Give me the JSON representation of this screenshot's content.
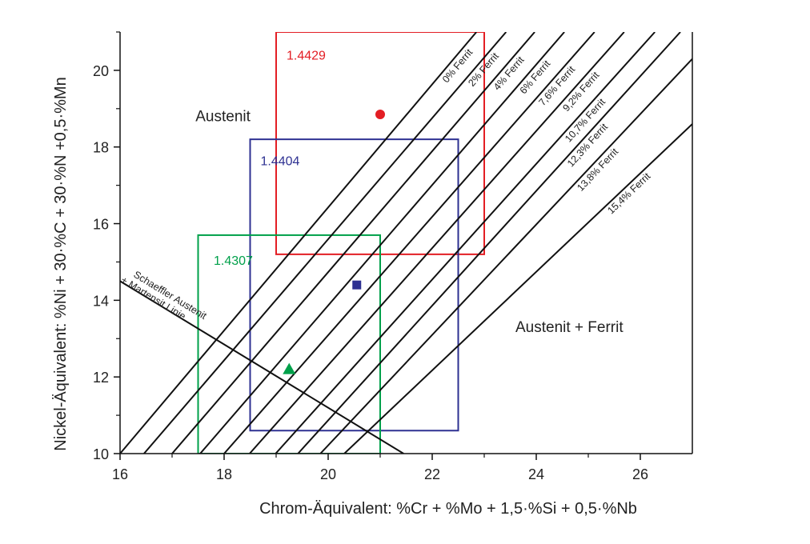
{
  "chart_data": {
    "type": "line",
    "xlabel": "Chrom-Äquivalent: %Cr + %Mo + 1,5·%Si + 0,5·%Nb",
    "ylabel": "Nickel-Äquivalent: %Ni + 30·%C + 30·%N +0,5·%Mn",
    "xlim": [
      16,
      27
    ],
    "ylim": [
      10,
      21
    ],
    "xticks": [
      16,
      18,
      20,
      22,
      24,
      26
    ],
    "yticks": [
      10,
      12,
      14,
      16,
      18,
      20
    ],
    "xticks_minor": [
      17,
      19,
      21,
      23,
      25
    ],
    "yticks_minor": [
      11,
      13,
      15,
      17,
      19,
      21
    ],
    "series": [
      {
        "name": "0% Ferrit",
        "color": "#111111",
        "x": [
          16.0,
          22.85
        ],
        "values": [
          10,
          21
        ]
      },
      {
        "name": "2% Ferrit",
        "color": "#111111",
        "x": [
          16.46,
          23.42
        ],
        "values": [
          10,
          21
        ]
      },
      {
        "name": "4% Ferrit",
        "color": "#111111",
        "x": [
          17.0,
          23.97
        ],
        "values": [
          10,
          21
        ]
      },
      {
        "name": "6% Ferrit",
        "color": "#111111",
        "x": [
          17.54,
          24.54
        ],
        "values": [
          10,
          21
        ]
      },
      {
        "name": "7,6% Ferrit",
        "color": "#111111",
        "x": [
          18.0,
          25.12
        ],
        "values": [
          10,
          21
        ]
      },
      {
        "name": "9,2% Ferrit",
        "color": "#111111",
        "x": [
          18.49,
          25.69
        ],
        "values": [
          10,
          21
        ]
      },
      {
        "name": "10,7% Ferrit",
        "color": "#111111",
        "x": [
          18.99,
          26.28
        ],
        "values": [
          10,
          21
        ]
      },
      {
        "name": "12,3% Ferrit",
        "color": "#111111",
        "x": [
          19.42,
          26.77
        ],
        "values": [
          10,
          21
        ]
      },
      {
        "name": "13,8% Ferrit",
        "color": "#111111",
        "x": [
          19.85,
          27
        ],
        "values": [
          10,
          20.3
        ]
      },
      {
        "name": "15,4% Ferrit",
        "color": "#111111",
        "x": [
          20.31,
          27
        ],
        "values": [
          10,
          18.6
        ]
      }
    ],
    "schaeffler_line": {
      "name": "Schaeffler Austenit + Martensit Linie",
      "color": "#111111",
      "x": [
        16,
        21.45
      ],
      "values": [
        14.5,
        10
      ]
    },
    "regions": [
      {
        "name": "1.4429",
        "color": "#e31e24",
        "xlim": [
          19,
          23
        ],
        "ylim": [
          15.2,
          21
        ]
      },
      {
        "name": "1.4404",
        "color": "#2e3192",
        "xlim": [
          18.5,
          22.5
        ],
        "ylim": [
          10.6,
          18.2
        ]
      },
      {
        "name": "1.4307",
        "color": "#00a04a",
        "xlim": [
          17.5,
          21
        ],
        "ylim": [
          10,
          15.7
        ]
      }
    ],
    "points": [
      {
        "marker": "circle",
        "color": "#e31e24",
        "x": 21,
        "y": 18.85
      },
      {
        "marker": "square",
        "color": "#2e3192",
        "x": 20.55,
        "y": 14.4
      },
      {
        "marker": "triangle",
        "color": "#00a04a",
        "x": 19.25,
        "y": 12.2
      }
    ],
    "annotations": [
      "Austenit",
      "Austenit + Ferrit"
    ]
  }
}
